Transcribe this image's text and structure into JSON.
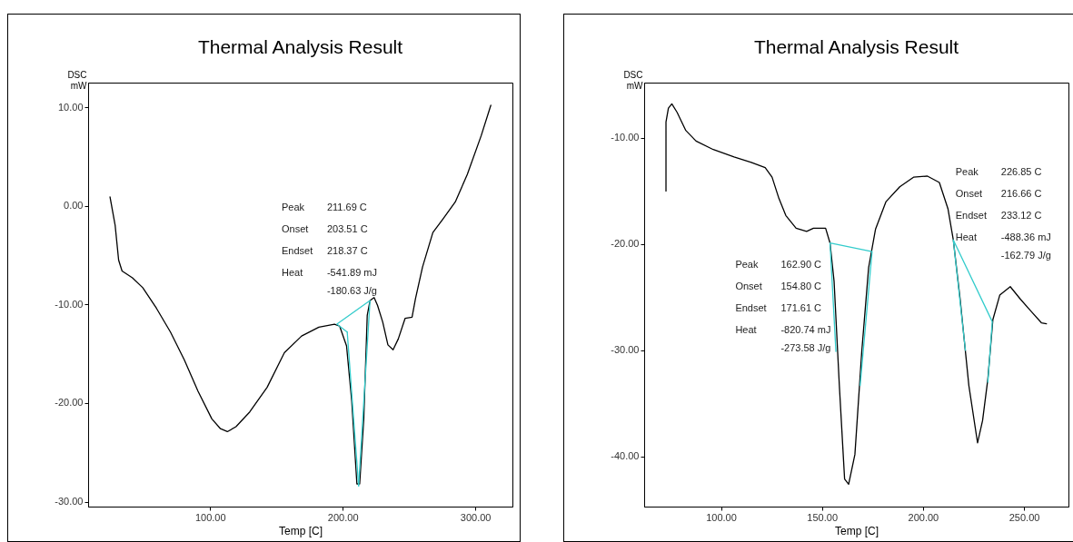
{
  "chart_data": [
    {
      "type": "line",
      "title": "Thermal Analysis Result",
      "xlabel": "Temp [C]",
      "ylabel": "DSC mW",
      "xlim": [
        8,
        328
      ],
      "ylim": [
        -30.5,
        12.5
      ],
      "xticks": [
        {
          "value": 100,
          "label": "100.00"
        },
        {
          "value": 200,
          "label": "200.00"
        },
        {
          "value": 300,
          "label": "300.00"
        }
      ],
      "yticks": [
        {
          "value": -30,
          "label": "-30.00"
        },
        {
          "value": -20,
          "label": "-20.00"
        },
        {
          "value": -10,
          "label": "-10.00"
        },
        {
          "value": 0,
          "label": "0.00"
        },
        {
          "value": 10,
          "label": "10.00"
        }
      ],
      "grid": false,
      "legend": false,
      "marker": "none",
      "line_style": "solid",
      "series": [
        {
          "color": "#000000",
          "x": [
            24.5,
            28.4,
            31.0,
            33.6,
            41.4,
            49.2,
            59.6,
            70.1,
            80.5,
            90.9,
            101.3,
            107.8,
            113.0,
            119.5,
            129.9,
            143.0,
            156.0,
            169.0,
            182.0,
            193.8,
            197.7,
            202.9,
            206.8,
            210.7,
            212.8,
            215.9,
            218.5,
            220.6,
            223.7,
            226.3,
            230.2,
            234.1,
            238.0,
            241.9,
            247.1,
            252.3,
            254.9,
            260.2,
            268.0,
            275.8,
            284.9,
            294.0,
            304.4,
            311.7
          ],
          "values": [
            0.9,
            -2.0,
            -5.5,
            -6.6,
            -7.3,
            -8.3,
            -10.4,
            -12.8,
            -15.6,
            -18.8,
            -21.6,
            -22.6,
            -22.9,
            -22.4,
            -20.9,
            -18.4,
            -14.9,
            -13.2,
            -12.3,
            -12.0,
            -12.2,
            -14.2,
            -19.8,
            -28.2,
            -28.2,
            -21.6,
            -11.1,
            -9.6,
            -9.3,
            -10.1,
            -11.8,
            -14.1,
            -14.6,
            -13.5,
            -11.4,
            -11.3,
            -9.4,
            -6.2,
            -2.7,
            -1.3,
            0.4,
            3.2,
            7.1,
            10.2
          ]
        },
        {
          "color": "#33cccc",
          "x": [
            203.4,
            195.6,
            220.6,
            212.0
          ],
          "values": [
            -12.8,
            -12.0,
            -9.6,
            -28.4
          ]
        },
        {
          "color": "#33cccc",
          "x": [
            203.4,
            212.0
          ],
          "values": [
            -12.8,
            -28.4
          ]
        }
      ],
      "annotations": [
        "Peak",
        "211.69 C",
        "Onset",
        "203.51 C",
        "Endset",
        "218.37 C",
        "Heat",
        "-541.89 mJ",
        "-180.63 J/g"
      ]
    },
    {
      "type": "line",
      "title": "Thermal Analysis Result",
      "xlabel": "Temp [C]",
      "ylabel": "DSC mW",
      "xlim": [
        62,
        272
      ],
      "ylim": [
        -44.7,
        -4.8
      ],
      "xticks": [
        {
          "value": 100,
          "label": "100.00"
        },
        {
          "value": 150,
          "label": "150.00"
        },
        {
          "value": 200,
          "label": "200.00"
        },
        {
          "value": 250,
          "label": "250.00"
        }
      ],
      "yticks": [
        {
          "value": -40,
          "label": "-40.00"
        },
        {
          "value": -30,
          "label": "-30.00"
        },
        {
          "value": -20,
          "label": "-20.00"
        },
        {
          "value": -10,
          "label": "-10.00"
        }
      ],
      "grid": false,
      "legend": false,
      "marker": "none",
      "line_style": "solid",
      "series": [
        {
          "color": "#000000",
          "x": [
            72.8,
            72.8,
            74.0,
            75.7,
            78.3,
            82.6,
            87.7,
            96.2,
            106.5,
            115.0,
            121.9,
            125.3,
            128.7,
            132.1,
            137.2,
            142.4,
            145.8,
            151.8,
            154.0,
            156.0,
            158.6,
            161.2,
            163.2,
            166.3,
            169.7,
            173.1,
            176.5,
            181.7,
            188.5,
            195.3,
            202.2,
            208.1,
            212.4,
            215.0,
            218.4,
            222.7,
            227.0,
            229.5,
            232.1,
            234.6,
            238.0,
            243.2,
            248.3,
            253.4,
            258.6,
            261.1
          ],
          "values": [
            -15.0,
            -8.5,
            -7.2,
            -6.8,
            -7.6,
            -9.3,
            -10.3,
            -11.1,
            -11.8,
            -12.3,
            -12.8,
            -13.7,
            -15.7,
            -17.3,
            -18.5,
            -18.8,
            -18.5,
            -18.5,
            -19.9,
            -23.5,
            -33.3,
            -42.1,
            -42.6,
            -39.8,
            -30.1,
            -22.2,
            -18.6,
            -16.0,
            -14.6,
            -13.7,
            -13.6,
            -14.2,
            -16.7,
            -19.6,
            -25.2,
            -33.3,
            -38.7,
            -36.6,
            -32.7,
            -27.1,
            -24.8,
            -24.0,
            -25.2,
            -26.3,
            -27.4,
            -27.5
          ]
        },
        {
          "color": "#33cccc",
          "x": [
            156.9,
            154.0,
            174.8,
            168.9
          ],
          "values": [
            -30.1,
            -19.9,
            -20.7,
            -33.3
          ]
        },
        {
          "color": "#33cccc",
          "x": [
            221.0,
            215.0,
            234.3,
            232.1
          ],
          "values": [
            -30.0,
            -19.6,
            -27.3,
            -33.0
          ]
        }
      ],
      "annotations": [
        "Peak",
        "162.90 C",
        "Onset",
        "154.80 C",
        "Endset",
        "171.61 C",
        "Heat",
        "-820.74 mJ",
        "-273.58 J/g",
        "Peak",
        "226.85 C",
        "Onset",
        "216.66 C",
        "Endset",
        "233.12 C",
        "Heat",
        "-488.36 mJ",
        "-162.79 J/g"
      ]
    }
  ]
}
